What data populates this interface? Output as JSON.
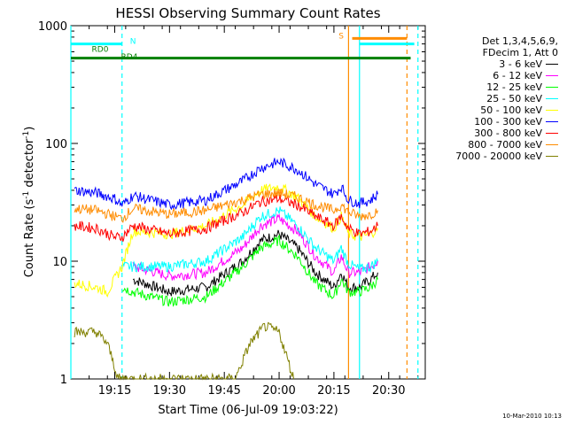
{
  "chart_data": {
    "type": "line",
    "title": "HESSI Observing Summary Count Rates",
    "xlabel": "Start Time (06-Jul-09 19:03:22)",
    "ylabel": "Count Rate (s^-1 detector^-1)",
    "ylabel_parts": [
      "Count Rate (s",
      "-1",
      " detector",
      "-1",
      ")"
    ],
    "y_scale": "log",
    "ylim": [
      1,
      1000
    ],
    "y_ticks": [
      "1",
      "10",
      "100",
      "1000"
    ],
    "xlim": [
      "19:03",
      "20:40"
    ],
    "x_ticks": [
      "19:15",
      "19:30",
      "19:45",
      "20:00",
      "20:15",
      "20:30"
    ],
    "legend_header": [
      "Det 1,3,4,5,6,9,",
      "FDecim 1, Att 0"
    ],
    "legend_position": "right",
    "series": [
      {
        "name": "3 - 6 keV",
        "color": "#000000",
        "x": [
          "19:20",
          "19:30",
          "19:40",
          "19:50",
          "19:55",
          "20:00",
          "20:05",
          "20:10",
          "20:15",
          "20:17",
          "20:19",
          "20:22",
          "20:25",
          "20:27"
        ],
        "y": [
          7,
          5.5,
          6,
          10,
          15,
          17,
          13,
          8,
          6,
          8,
          6,
          6,
          7,
          8
        ]
      },
      {
        "name": "6 - 12 keV",
        "color": "#ff00ff",
        "x": [
          "19:20",
          "19:30",
          "19:40",
          "19:50",
          "19:55",
          "20:00",
          "20:05",
          "20:10",
          "20:15",
          "20:17",
          "20:19",
          "20:22",
          "20:25",
          "20:27"
        ],
        "y": [
          9,
          7.5,
          8,
          13,
          20,
          23,
          18,
          11,
          8,
          11,
          8,
          8,
          9,
          10
        ]
      },
      {
        "name": "12 - 25 keV",
        "color": "#00ff00",
        "x": [
          "19:17",
          "19:20",
          "19:30",
          "19:40",
          "19:50",
          "19:55",
          "20:00",
          "20:05",
          "20:10",
          "20:15",
          "20:17",
          "20:19",
          "20:22",
          "20:25",
          "20:27"
        ],
        "y": [
          6,
          5.5,
          4.5,
          5,
          9,
          13,
          15,
          11,
          6.5,
          5,
          7,
          5.5,
          5.5,
          6,
          7
        ]
      },
      {
        "name": "25 - 50 keV",
        "color": "#00ffff",
        "x": [
          "19:17",
          "19:20",
          "19:30",
          "19:40",
          "19:50",
          "19:55",
          "20:00",
          "20:05",
          "20:10",
          "20:15",
          "20:17",
          "20:19",
          "20:22",
          "20:25",
          "20:27"
        ],
        "y": [
          9,
          9,
          9,
          10,
          16,
          24,
          27,
          20,
          13,
          10,
          13,
          9.5,
          8.5,
          9,
          10
        ]
      },
      {
        "name": "50 - 100 keV",
        "color": "#ffff00",
        "x": [
          "19:04",
          "19:10",
          "19:13",
          "19:17",
          "19:20",
          "19:30",
          "19:40",
          "19:50",
          "19:55",
          "20:00",
          "20:05",
          "20:10",
          "20:15",
          "20:17",
          "20:19",
          "20:22",
          "20:25",
          "20:27"
        ],
        "y": [
          6.5,
          6,
          5.5,
          9,
          18,
          17,
          20,
          30,
          40,
          43,
          35,
          24,
          19,
          24,
          17,
          16,
          17,
          19
        ]
      },
      {
        "name": "100 - 300 keV",
        "color": "#0000ff",
        "x": [
          "19:04",
          "19:10",
          "19:15",
          "19:17",
          "19:20",
          "19:30",
          "19:40",
          "19:50",
          "19:55",
          "20:00",
          "20:05",
          "20:10",
          "20:15",
          "20:17",
          "20:19",
          "20:22",
          "20:25",
          "20:27"
        ],
        "y": [
          40,
          38,
          34,
          30,
          36,
          30,
          33,
          48,
          62,
          70,
          60,
          45,
          37,
          43,
          33,
          31,
          33,
          37
        ]
      },
      {
        "name": "300 - 800 keV",
        "color": "#ff0000",
        "x": [
          "19:04",
          "19:10",
          "19:15",
          "19:17",
          "19:20",
          "19:30",
          "19:40",
          "19:50",
          "19:55",
          "20:00",
          "20:05",
          "20:10",
          "20:15",
          "20:17",
          "20:19",
          "20:22",
          "20:25",
          "20:27"
        ],
        "y": [
          20,
          19,
          16,
          16,
          20,
          17,
          19,
          26,
          32,
          34,
          30,
          24,
          20,
          24,
          19,
          17,
          18,
          20
        ]
      },
      {
        "name": "800 - 7000 keV",
        "color": "#ff8c00",
        "x": [
          "19:04",
          "19:10",
          "19:15",
          "19:17",
          "19:20",
          "19:30",
          "19:40",
          "19:50",
          "19:55",
          "20:00",
          "20:05",
          "20:10",
          "20:15",
          "20:17",
          "20:19",
          "20:22",
          "20:25",
          "20:27"
        ],
        "y": [
          28,
          27,
          24,
          23,
          28,
          25,
          27,
          33,
          37,
          38,
          35,
          30,
          27,
          30,
          26,
          24,
          25,
          27
        ]
      },
      {
        "name": "7000 - 20000 keV",
        "color": "#808000",
        "x": [
          "19:04",
          "19:10",
          "19:13",
          "19:16",
          "19:48",
          "19:52",
          "19:56",
          "20:00",
          "20:04"
        ],
        "y": [
          2.5,
          2.5,
          2,
          1,
          1,
          2,
          2.8,
          2.5,
          1
        ]
      }
    ],
    "annotations": [
      {
        "text": "RD0",
        "color": "#008000",
        "x": "19:11",
        "y": 600
      },
      {
        "text": "RD4",
        "color": "#008000",
        "x": "19:19",
        "y": 520
      },
      {
        "text": "N",
        "color": "#00ffff",
        "x": "19:20",
        "y": 700
      },
      {
        "text": "S",
        "color": "#ff8c00",
        "x": "20:17",
        "y": 780
      }
    ],
    "flags": [
      {
        "name": "night",
        "color": "#00ffff",
        "y": 700,
        "from": "19:03",
        "to": "19:17"
      },
      {
        "name": "night",
        "color": "#00ffff",
        "y": 700,
        "from": "20:22",
        "to": "20:37"
      },
      {
        "name": "RD0",
        "color": "#008000",
        "y": 530,
        "from": "19:03",
        "to": "20:36"
      },
      {
        "name": "saa",
        "color": "#ff8c00",
        "y": 780,
        "from": "20:20",
        "to": "20:35"
      }
    ],
    "vlines": [
      {
        "x": "19:03",
        "color": "#00ffff",
        "style": "solid"
      },
      {
        "x": "19:17",
        "color": "#00ffff",
        "style": "dashed"
      },
      {
        "x": "20:19",
        "color": "#ff8c00",
        "style": "solid"
      },
      {
        "x": "20:22",
        "color": "#00ffff",
        "style": "solid"
      },
      {
        "x": "20:35",
        "color": "#ff8c00",
        "style": "dashed"
      },
      {
        "x": "20:38",
        "color": "#00ffff",
        "style": "dashed"
      }
    ],
    "grid": false
  },
  "footer": {
    "timestamp": "10-Mar-2010 10:13"
  }
}
